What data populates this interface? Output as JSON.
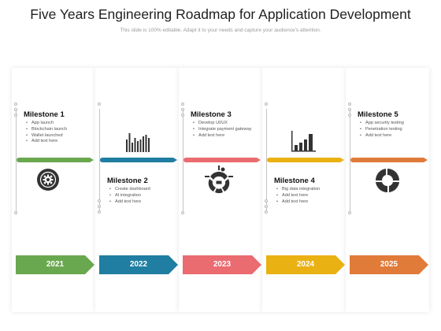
{
  "header": {
    "title": "Five Years Engineering Roadmap for Application Development",
    "subtitle": "This slide is 100% editable. Adapt it to your needs and capture your audience's attention."
  },
  "colors": {
    "green": "#6aa84f",
    "blue": "#1f7ea1",
    "red": "#ea6b70",
    "yellow": "#eab113",
    "orange": "#e07b39"
  },
  "milestones": [
    {
      "title": "Milestone 1",
      "items": [
        "App launch",
        "Blockchain launch",
        "Wallet launched",
        "Add text here"
      ],
      "icon": "gear-target-icon",
      "year": "2021"
    },
    {
      "title": "Milestone 2",
      "items": [
        "Create dashboard",
        "AI integration",
        "Add text here"
      ],
      "icon": "bar-chart-icon",
      "year": "2022"
    },
    {
      "title": "Milestone 3",
      "items": [
        "Develop UI/UX",
        "Integrate payment gateway",
        "Add text here"
      ],
      "icon": "bug-laptop-icon",
      "year": "2023"
    },
    {
      "title": "Milestone 4",
      "items": [
        "Big data integration",
        "Add text here",
        "Add text here"
      ],
      "icon": "growth-chart-icon",
      "year": "2024"
    },
    {
      "title": "Milestone 5",
      "items": [
        "App security testing",
        "Penetration testing",
        "Add text here"
      ],
      "icon": "pie-segments-icon",
      "year": "2025"
    }
  ]
}
